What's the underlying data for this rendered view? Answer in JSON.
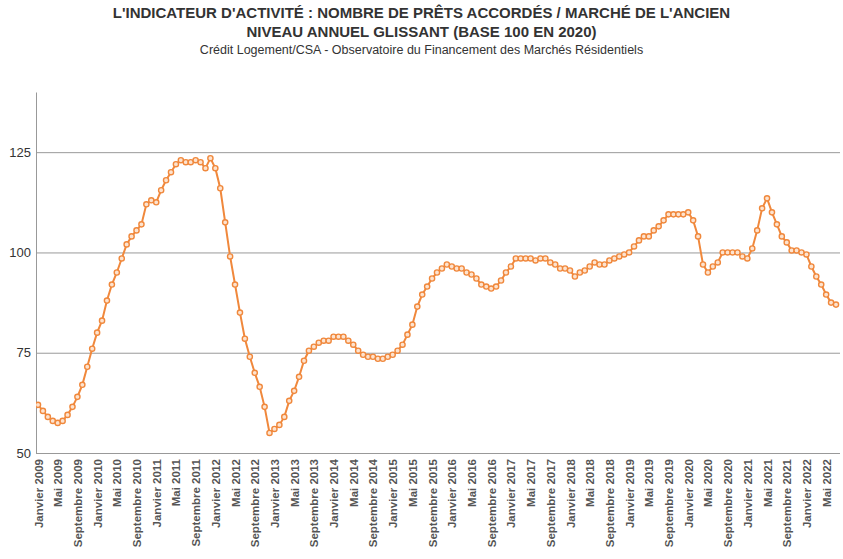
{
  "chart_data": {
    "type": "line",
    "title": [
      "L'INDICATEUR D'ACTIVITÉ : NOMBRE DE PRÊTS ACCORDÉS / MARCHÉ DE L'ANCIEN",
      "NIVEAU ANNUEL GLISSANT (BASE 100 EN 2020)"
    ],
    "subtitle": "Crédit Logement/CSA - Observatoire du Financement des Marchés Résidentiels",
    "categories": [
      "Janvier 2009",
      null,
      null,
      null,
      "Mai 2009",
      null,
      null,
      null,
      "Septembre 2009",
      null,
      null,
      null,
      "Janvier 2010",
      null,
      null,
      null,
      "Mai 2010",
      null,
      null,
      null,
      "Septembre 2010",
      null,
      null,
      null,
      "Janvier 2011",
      null,
      null,
      null,
      "Mai 2011",
      null,
      null,
      null,
      "Septembre 2011",
      null,
      null,
      null,
      "Janvier 2012",
      null,
      null,
      null,
      "Mai 2012",
      null,
      null,
      null,
      "Septembre 2012",
      null,
      null,
      null,
      "Janvier 2013",
      null,
      null,
      null,
      "Mai 2013",
      null,
      null,
      null,
      "Septembre 2013",
      null,
      null,
      null,
      "Janvier 2014",
      null,
      null,
      null,
      "Mai 2014",
      null,
      null,
      null,
      "Septembre 2014",
      null,
      null,
      null,
      "Janvier 2015",
      null,
      null,
      null,
      "Mai 2015",
      null,
      null,
      null,
      "Septembre 2015",
      null,
      null,
      null,
      "Janvier 2016",
      null,
      null,
      null,
      "Mai 2016",
      null,
      null,
      null,
      "Septembre 2016",
      null,
      null,
      null,
      "Janvier 2017",
      null,
      null,
      null,
      "Mai 2017",
      null,
      null,
      null,
      "Septembre 2017",
      null,
      null,
      null,
      "Janvier 2018",
      null,
      null,
      null,
      "Mai 2018",
      null,
      null,
      null,
      "Septembre 2018",
      null,
      null,
      null,
      "Janvier 2019",
      null,
      null,
      null,
      "Mai 2019",
      null,
      null,
      null,
      "Septembre 2019",
      null,
      null,
      null,
      "Janvier 2020",
      null,
      null,
      null,
      "Mai 2020",
      null,
      null,
      null,
      "Septembre 2020",
      null,
      null,
      null,
      "Janvier 2021",
      null,
      null,
      null,
      "Mai 2021",
      null,
      null,
      null,
      "Septembre 2021",
      null,
      null,
      null,
      "Janvier 2022",
      null,
      null,
      null,
      "Mai 2022",
      null,
      null
    ],
    "values": [
      62,
      60.5,
      59,
      58,
      57.5,
      58,
      59.5,
      61.5,
      64,
      67,
      71.5,
      76,
      80,
      83,
      88,
      92,
      95,
      98.5,
      102,
      104,
      105.5,
      107,
      112,
      113,
      112.5,
      115.5,
      118,
      120,
      122,
      123,
      122.5,
      122.5,
      123,
      122.5,
      121,
      123.5,
      121,
      116,
      107.5,
      99,
      92,
      85,
      78.5,
      74,
      70,
      66.5,
      61.5,
      55,
      56,
      57,
      59,
      63,
      65.5,
      69,
      73,
      75.5,
      76.5,
      77.5,
      78,
      78,
      79,
      79,
      79,
      78,
      77,
      75.5,
      74.5,
      74,
      74,
      73.5,
      73.5,
      74,
      74.5,
      75.5,
      77,
      79.5,
      82,
      86.5,
      89.5,
      91.5,
      93.5,
      95,
      96,
      97,
      96.5,
      96,
      96,
      95,
      94.5,
      93.5,
      92,
      91.5,
      91,
      91.5,
      93,
      95,
      96.5,
      98.5,
      98.5,
      98.5,
      98.5,
      98,
      98.5,
      98.5,
      97.5,
      97,
      96,
      96,
      95.5,
      94,
      95,
      95.5,
      96.5,
      97.5,
      97,
      97,
      98,
      98.5,
      99,
      99.5,
      100,
      101.5,
      103,
      104,
      104,
      105.5,
      106.5,
      108,
      109.5,
      109.5,
      109.5,
      109.5,
      110,
      108,
      104,
      97,
      95,
      96.5,
      97.5,
      100,
      100,
      100,
      100,
      99,
      98.5,
      101,
      105.5,
      111,
      113.5,
      110,
      107,
      104,
      102.5,
      100.5,
      100.5,
      100,
      99.5,
      96.5,
      94,
      92,
      89.5,
      87.5,
      87
    ],
    "color": "#f0883c",
    "marker": "circle",
    "line_style": "solid",
    "ylim": [
      50,
      140
    ],
    "yticks": [
      50,
      75,
      100,
      125
    ],
    "grid": true
  }
}
